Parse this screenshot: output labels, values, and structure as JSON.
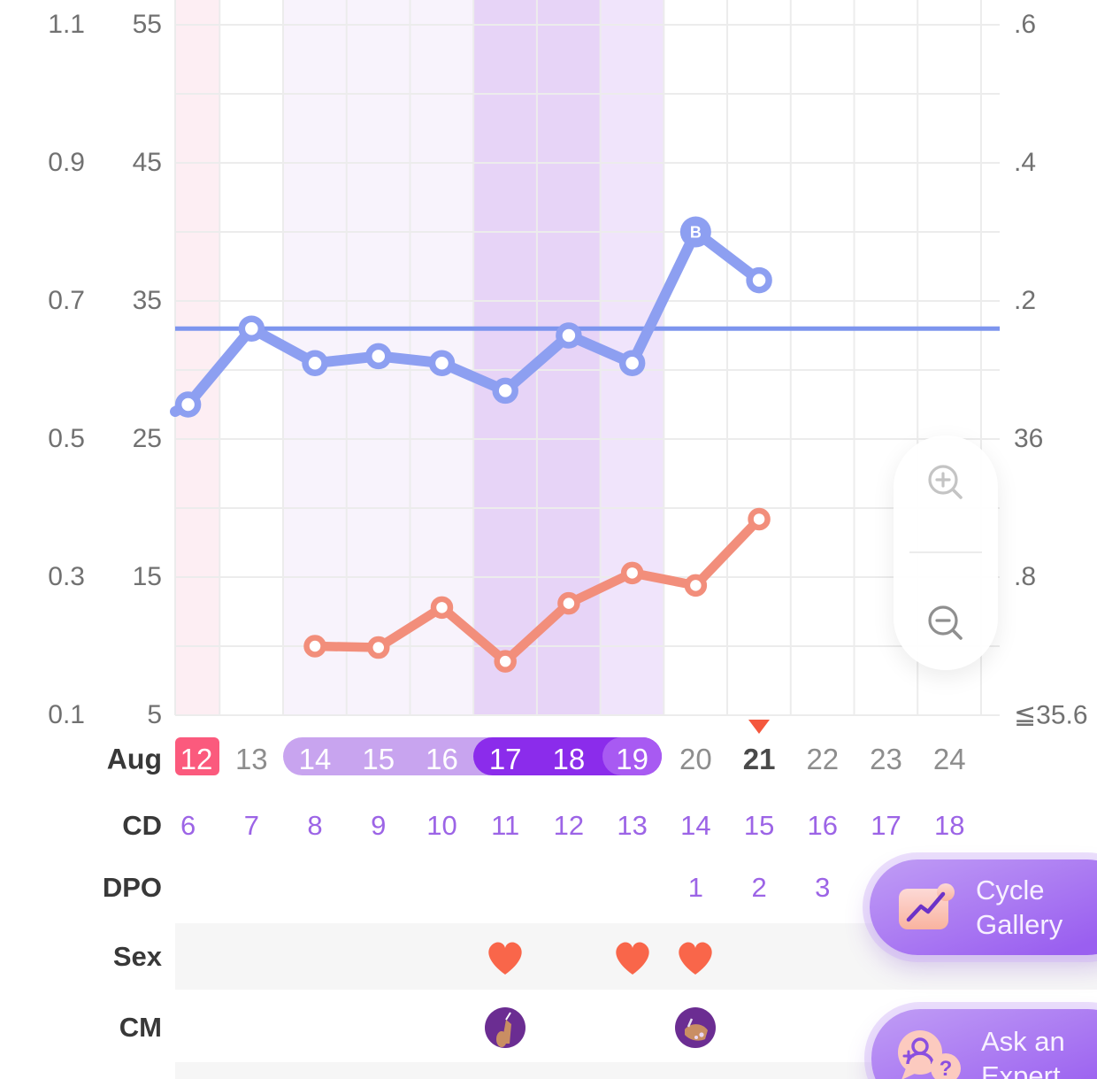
{
  "rows": {
    "month_label": "Aug",
    "cd_label": "CD",
    "dpo_label": "DPO",
    "sex_label": "Sex",
    "cm_label": "CM"
  },
  "axes": {
    "left_outer": {
      "labels": [
        "1.1",
        "0.9",
        "0.7",
        "0.5",
        "0.3",
        "0.1"
      ]
    },
    "left_inner": {
      "labels": [
        "55",
        "45",
        "35",
        "25",
        "15",
        "5"
      ]
    },
    "right": {
      "labels": [
        ".6",
        ".4",
        ".2",
        "36",
        ".8",
        "≦35.6"
      ]
    }
  },
  "chart_data": {
    "type": "line",
    "month": "Aug",
    "categories": [
      12,
      13,
      14,
      15,
      16,
      17,
      18,
      19,
      20,
      21,
      22,
      23,
      24
    ],
    "series": [
      {
        "name": "basal-body-temperature",
        "unit": "°C",
        "axis": "right",
        "color": "#8d9ff1",
        "x": [
          12,
          13,
          14,
          15,
          16,
          17,
          18,
          19,
          20,
          21
        ],
        "values": [
          36.05,
          36.16,
          36.11,
          36.12,
          36.11,
          36.07,
          36.15,
          36.11,
          36.3,
          36.23
        ]
      },
      {
        "name": "test-value",
        "axis": "left-inner",
        "color": "#f28e7b",
        "x": [
          14,
          15,
          16,
          17,
          18,
          19,
          20,
          21
        ],
        "values": [
          10,
          9.9,
          12.8,
          8.9,
          13.1,
          15.3,
          14.4,
          19.2
        ]
      }
    ],
    "coverline_value": 36.16,
    "b_marker": {
      "date": 20,
      "label": "B"
    },
    "right_axis": {
      "min": 35.6,
      "max": 36.6,
      "tick_step": 0.2
    },
    "left_inner_axis": {
      "min": 5,
      "max": 55,
      "tick_step": 10
    },
    "left_outer_axis": {
      "min": 0.1,
      "max": 1.1,
      "tick_step": 0.2
    },
    "grid": true,
    "legend": "none"
  },
  "cycle": {
    "period_dates": [
      "12"
    ],
    "fertile_start": "14",
    "fertile_end": "19",
    "peak_dates": [
      "17",
      "18"
    ],
    "ovulation_date": "19",
    "today_date": "21"
  },
  "columns": [
    {
      "date": "12",
      "cd": "6",
      "dpo": "",
      "sex": false,
      "cm": ""
    },
    {
      "date": "13",
      "cd": "7",
      "dpo": "",
      "sex": false,
      "cm": ""
    },
    {
      "date": "14",
      "cd": "8",
      "dpo": "",
      "sex": false,
      "cm": ""
    },
    {
      "date": "15",
      "cd": "9",
      "dpo": "",
      "sex": false,
      "cm": ""
    },
    {
      "date": "16",
      "cd": "10",
      "dpo": "",
      "sex": false,
      "cm": ""
    },
    {
      "date": "17",
      "cd": "11",
      "dpo": "",
      "sex": true,
      "cm": "egg-white"
    },
    {
      "date": "18",
      "cd": "12",
      "dpo": "",
      "sex": false,
      "cm": ""
    },
    {
      "date": "19",
      "cd": "13",
      "dpo": "",
      "sex": true,
      "cm": ""
    },
    {
      "date": "20",
      "cd": "14",
      "dpo": "1",
      "sex": true,
      "cm": "creamy"
    },
    {
      "date": "21",
      "cd": "15",
      "dpo": "2",
      "sex": false,
      "cm": ""
    },
    {
      "date": "22",
      "cd": "16",
      "dpo": "3",
      "sex": false,
      "cm": ""
    },
    {
      "date": "23",
      "cd": "17",
      "dpo": "",
      "sex": false,
      "cm": ""
    },
    {
      "date": "24",
      "cd": "18",
      "dpo": "",
      "sex": false,
      "cm": ""
    }
  ],
  "buttons": {
    "cycle_gallery": {
      "label": "Cycle Gallery"
    },
    "ask_expert": {
      "label": "Ask an Expert",
      "icon_glyph": "?"
    }
  },
  "icons": {
    "zoom_in": "magnifier-plus",
    "zoom_out": "magnifier-minus",
    "sex": "heart",
    "today_marker": "triangle-down",
    "cycle_gallery": "line-chart-picture",
    "ask_expert": "chat-bubbles-question",
    "cm_variants": [
      "hand-egg-white-mucus",
      "hand-creamy-mucus"
    ]
  },
  "colors": {
    "temp_line": "#8d9ff1",
    "coverline": "#7d95ee",
    "lh_line": "#f28e7b",
    "heart": "#f9664a",
    "today_marker": "#f4573d",
    "band_period": "#fdeef3",
    "band_fertile": "#f8f3fc",
    "band_peak": "#e7d4f7",
    "band_ovulation": "#f0e4fb",
    "pill_fertile": "#c8a4ef",
    "pill_peak": "#8b2ceb",
    "pill_ovulation": "#a85af2",
    "pill_period": "#fb5a7d",
    "cd_text": "#9c64e6",
    "grid": "#ececec",
    "button_gradient_start": "#c09df5",
    "button_gradient_end": "#9a5ff0"
  }
}
